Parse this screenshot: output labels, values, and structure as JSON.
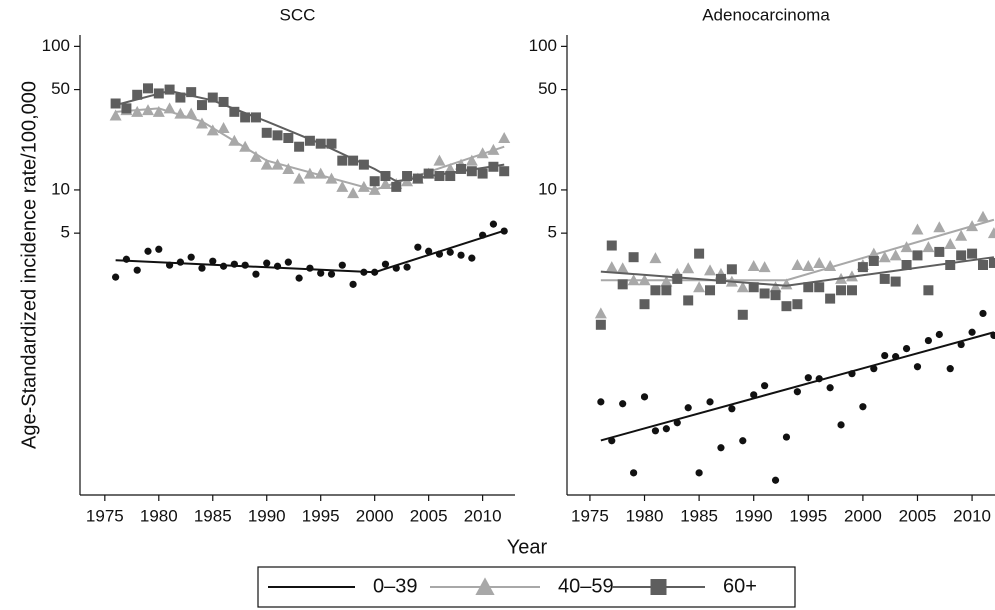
{
  "chart_data": [
    {
      "type": "scatter",
      "title": "SCC",
      "ylabel": "Age-Standardized incidence rate/100,000",
      "xlabel": "Year",
      "log_y": true,
      "xlim": [
        1972.7,
        2013
      ],
      "ylim": [
        0.075,
        120
      ],
      "xticks": [
        1975,
        1980,
        1985,
        1990,
        1995,
        2000,
        2005,
        2010
      ],
      "yticks": [
        5,
        10,
        50,
        100
      ],
      "x": [
        1976,
        1977,
        1978,
        1979,
        1980,
        1981,
        1982,
        1983,
        1984,
        1985,
        1986,
        1987,
        1988,
        1989,
        1990,
        1991,
        1992,
        1993,
        1994,
        1995,
        1996,
        1997,
        1998,
        1999,
        2000,
        2001,
        2002,
        2003,
        2004,
        2005,
        2006,
        2007,
        2008,
        2009,
        2010,
        2011,
        2012
      ],
      "series": [
        {
          "name": "0–39",
          "color": "#111111",
          "marker": "circle",
          "values": [
            2.47,
            3.29,
            2.76,
            3.74,
            3.86,
            2.99,
            3.14,
            3.4,
            2.85,
            3.19,
            2.94,
            3.04,
            2.99,
            2.59,
            3.09,
            2.94,
            3.14,
            2.43,
            2.85,
            2.63,
            2.59,
            2.99,
            2.2,
            2.67,
            2.67,
            3.04,
            2.85,
            2.9,
            3.99,
            3.74,
            3.57,
            3.68,
            3.51,
            3.35,
            4.84,
            5.78,
            5.17
          ],
          "trend_x": [
            1976,
            2000,
            2012
          ],
          "trend": [
            3.24,
            2.67,
            5.2
          ]
        },
        {
          "name": "40–59",
          "color": "#a8a8a8",
          "marker": "triangle",
          "values": [
            33,
            36,
            35,
            36,
            35,
            37,
            34,
            34,
            29,
            26,
            27,
            22,
            20,
            17,
            15,
            15,
            14,
            12,
            13,
            13,
            12,
            10.5,
            9.5,
            10.5,
            10,
            11,
            11,
            11.5,
            12,
            13,
            16,
            14,
            15,
            16,
            18,
            19,
            23
          ],
          "trend_x": [
            1976,
            1980,
            1984,
            1990,
            2000,
            2012
          ],
          "trend": [
            35,
            37,
            30,
            16,
            10,
            20
          ]
        },
        {
          "name": "60+",
          "color": "#5e5e5e",
          "marker": "square",
          "values": [
            40,
            37,
            46,
            51,
            47,
            50,
            44,
            48,
            39,
            44,
            41,
            35,
            32,
            32,
            25,
            24,
            23,
            20,
            22,
            21,
            21,
            16,
            16,
            15,
            11.5,
            12.5,
            10.5,
            12.5,
            12,
            13,
            12.5,
            12.5,
            14,
            13.5,
            13,
            14.5,
            13.5
          ],
          "trend_x": [
            1976,
            1981,
            1985,
            1990,
            1995,
            2000,
            2002,
            2012
          ],
          "trend": [
            39,
            49,
            42,
            30,
            21,
            14,
            11.5,
            15
          ]
        }
      ]
    },
    {
      "type": "scatter",
      "title": "Adenocarcinoma",
      "log_y": true,
      "xlim": [
        1972.9,
        2012.1
      ],
      "ylim": [
        0.075,
        120
      ],
      "xticks": [
        1975,
        1980,
        1985,
        1990,
        1995,
        2000,
        2005,
        2010
      ],
      "yticks": [
        5,
        10,
        50,
        100
      ],
      "x": [
        1976,
        1977,
        1978,
        1979,
        1980,
        1981,
        1982,
        1983,
        1984,
        1985,
        1986,
        1987,
        1988,
        1989,
        1990,
        1991,
        1992,
        1993,
        1994,
        1995,
        1996,
        1997,
        1998,
        1999,
        2000,
        2001,
        2002,
        2003,
        2004,
        2005,
        2006,
        2007,
        2008,
        2009,
        2010,
        2011,
        2012
      ],
      "series": [
        {
          "name": "0–39",
          "color": "#111111",
          "marker": "circle",
          "values": [
            0.334,
            0.179,
            0.324,
            0.107,
            0.362,
            0.21,
            0.217,
            0.239,
            0.304,
            0.107,
            0.334,
            0.16,
            0.299,
            0.179,
            0.374,
            0.433,
            0.095,
            0.19,
            0.393,
            0.492,
            0.484,
            0.419,
            0.231,
            0.525,
            0.309,
            0.569,
            0.702,
            0.69,
            0.785,
            0.587,
            0.893,
            0.984,
            0.569,
            0.838,
            1.02,
            1.38,
            0.969
          ],
          "trend_x": [
            1976,
            2012
          ],
          "trend": [
            0.18,
            1.02
          ]
        },
        {
          "name": "40–59",
          "color": "#a8a8a8",
          "marker": "triangle",
          "values": [
            1.38,
            2.9,
            2.85,
            2.35,
            2.35,
            3.35,
            2.3,
            2.6,
            2.85,
            2.1,
            2.75,
            2.6,
            2.3,
            2.1,
            2.95,
            2.9,
            2.1,
            2.2,
            3.0,
            2.95,
            3.1,
            2.95,
            2.4,
            2.5,
            3.0,
            3.6,
            3.4,
            3.5,
            4.0,
            5.3,
            4.0,
            5.5,
            4.2,
            4.8,
            5.6,
            6.5,
            5.0
          ],
          "trend_x": [
            1976,
            1993,
            2012
          ],
          "trend": [
            2.35,
            2.35,
            6.2
          ]
        },
        {
          "name": "60+",
          "color": "#5e5e5e",
          "marker": "square",
          "values": [
            1.15,
            4.1,
            2.2,
            3.4,
            1.6,
            2.0,
            2.0,
            2.4,
            1.7,
            3.6,
            2.0,
            2.4,
            2.8,
            1.35,
            2.1,
            1.9,
            1.85,
            1.55,
            1.6,
            2.1,
            2.1,
            1.75,
            2.0,
            2.0,
            2.9,
            3.2,
            2.4,
            2.3,
            3.0,
            3.5,
            2.0,
            3.7,
            3.0,
            3.5,
            3.6,
            3.0,
            3.1
          ],
          "trend_x": [
            1976,
            1993,
            2012
          ],
          "trend": [
            2.7,
            2.15,
            3.4
          ]
        }
      ]
    }
  ]
}
